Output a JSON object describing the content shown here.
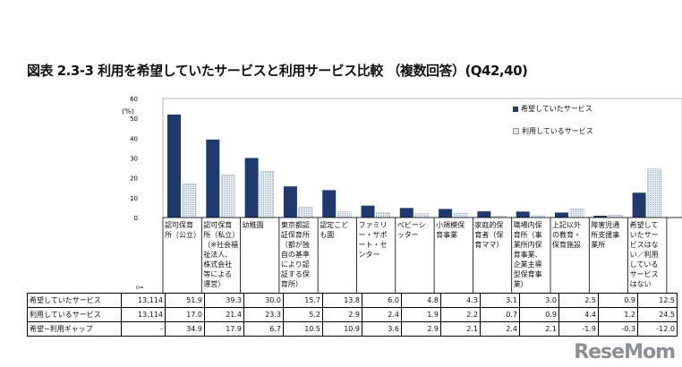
{
  "title": "図表 2.3-3 利用を希望していたサービスと利用サービス比較 （複数回答）(Q42,40)",
  "unit": "(%)",
  "n_label": "n=",
  "logo": "ReseMom",
  "colors": {
    "desired": "#1f3a6e",
    "used": "#dfe6ef"
  },
  "chart_data": {
    "type": "bar",
    "ylim": [
      0,
      60
    ],
    "yticks": [
      0,
      10,
      20,
      30,
      40,
      50,
      60
    ],
    "ylabel": "(%)",
    "legend_position": "top-right",
    "categories": [
      "認可保育所（公立）",
      "認可保育所（私立）（※社会福祉法人、株式会社等による運営）",
      "幼稚園",
      "東京都認証保育所（都が独自の基準により認証する保育所）",
      "認定こども園",
      "ファミリー・サポート・センター",
      "ベビーシッター",
      "小規模保育事業",
      "家庭的保育者（保育ママ）",
      "職場内保育所（事業所内保育事業、企業主導型保育事業）",
      "上記以外の教育・保育施設",
      "障害児通所支援事業所",
      "希望していたサービスはない／利用しているサービスはない"
    ],
    "series": [
      {
        "name": "希望していたサービス",
        "n": "13,114",
        "values": [
          51.9,
          39.3,
          30.0,
          15.7,
          13.8,
          6.0,
          4.8,
          4.3,
          3.1,
          3.0,
          2.5,
          0.9,
          12.5
        ]
      },
      {
        "name": "利用しているサービス",
        "n": "13,114",
        "values": [
          17.0,
          21.4,
          23.3,
          5.2,
          2.9,
          2.4,
          1.9,
          2.2,
          0.7,
          0.9,
          4.4,
          1.2,
          24.5
        ]
      }
    ],
    "gap": {
      "name": "希望−利用ギャップ",
      "n": "-",
      "values": [
        34.9,
        17.9,
        6.7,
        10.5,
        10.9,
        3.6,
        2.9,
        2.1,
        2.4,
        2.1,
        -1.9,
        -0.3,
        -12.0
      ]
    }
  }
}
